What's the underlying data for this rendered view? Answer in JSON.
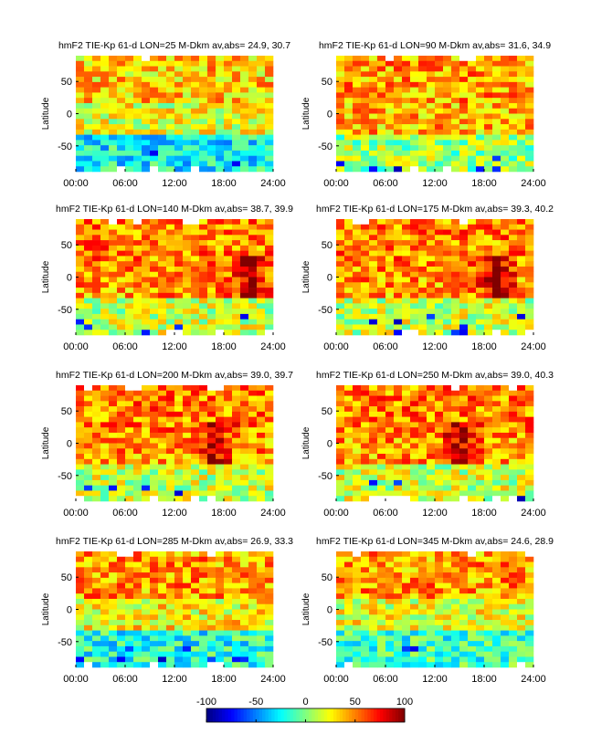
{
  "figure": {
    "ylabel": "Latitude",
    "colorbar": {
      "min": -100,
      "max": 100,
      "ticks": [
        "-100",
        "-50",
        "0",
        "50",
        "100"
      ],
      "colormap": "jet"
    }
  },
  "chart_data": [
    {
      "type": "heatmap",
      "title": "hmF2 TIE-Kp 61-d  LON=25 M-Dkm av,abs= 24.9, 30.7",
      "x_ticks": [
        "00:00",
        "06:00",
        "12:00",
        "18:00",
        "24:00"
      ],
      "y_ticks": [
        "50",
        "0",
        "-50"
      ],
      "ylabel": "Latitude",
      "xlim": [
        0,
        24
      ],
      "ylim": [
        -90,
        90
      ],
      "hot_spots": [],
      "description_values": {
        "north": 35,
        "equator": 20,
        "south": -25
      }
    },
    {
      "type": "heatmap",
      "title": "hmF2 TIE-Kp 61-d  LON=90 M-Dkm av,abs= 31.6, 34.9",
      "x_ticks": [
        "00:00",
        "06:00",
        "12:00",
        "18:00",
        "24:00"
      ],
      "y_ticks": [
        "50",
        "0",
        "-50"
      ],
      "ylabel": "Latitude",
      "xlim": [
        0,
        24
      ],
      "ylim": [
        -90,
        90
      ],
      "hot_spots": [],
      "description_values": {
        "north": 45,
        "equator": 40,
        "south": 5
      }
    },
    {
      "type": "heatmap",
      "title": "hmF2 TIE-Kp 61-d  LON=140 M-Dkm av,abs= 38.7, 39.9",
      "x_ticks": [
        "00:00",
        "06:00",
        "12:00",
        "18:00",
        "24:00"
      ],
      "y_ticks": [
        "50",
        "0",
        "-50"
      ],
      "ylabel": "Latitude",
      "xlim": [
        0,
        24
      ],
      "ylim": [
        -90,
        90
      ],
      "hot_spots": [
        21
      ],
      "description_values": {
        "north": 50,
        "equator": 45,
        "south": 15
      }
    },
    {
      "type": "heatmap",
      "title": "hmF2 TIE-Kp 61-d  LON=175 M-Dkm av,abs= 39.3, 40.2",
      "x_ticks": [
        "00:00",
        "06:00",
        "12:00",
        "18:00",
        "24:00"
      ],
      "y_ticks": [
        "50",
        "0",
        "-50"
      ],
      "ylabel": "Latitude",
      "xlim": [
        0,
        24
      ],
      "ylim": [
        -90,
        90
      ],
      "hot_spots": [
        19.5
      ],
      "description_values": {
        "north": 50,
        "equator": 45,
        "south": 15
      }
    },
    {
      "type": "heatmap",
      "title": "hmF2 TIE-Kp 61-d  LON=200 M-Dkm av,abs= 39.0, 39.7",
      "x_ticks": [
        "00:00",
        "06:00",
        "12:00",
        "18:00",
        "24:00"
      ],
      "y_ticks": [
        "50",
        "0",
        "-50"
      ],
      "ylabel": "Latitude",
      "xlim": [
        0,
        24
      ],
      "ylim": [
        -90,
        90
      ],
      "hot_spots": [
        17
      ],
      "description_values": {
        "north": 50,
        "equator": 45,
        "south": 15
      }
    },
    {
      "type": "heatmap",
      "title": "hmF2 TIE-Kp 61-d  LON=250 M-Dkm av,abs= 39.0, 40.3",
      "x_ticks": [
        "00:00",
        "06:00",
        "12:00",
        "18:00",
        "24:00"
      ],
      "y_ticks": [
        "50",
        "0",
        "-50"
      ],
      "ylabel": "Latitude",
      "xlim": [
        0,
        24
      ],
      "ylim": [
        -90,
        90
      ],
      "hot_spots": [
        15
      ],
      "description_values": {
        "north": 50,
        "equator": 45,
        "south": 15
      }
    },
    {
      "type": "heatmap",
      "title": "hmF2 TIE-Kp 61-d  LON=285 M-Dkm av,abs= 26.9, 33.3",
      "x_ticks": [
        "00:00",
        "06:00",
        "12:00",
        "18:00",
        "24:00"
      ],
      "y_ticks": [
        "50",
        "0",
        "-50"
      ],
      "ylabel": "Latitude",
      "xlim": [
        0,
        24
      ],
      "ylim": [
        -90,
        90
      ],
      "hot_spots": [],
      "description_values": {
        "north": 45,
        "equator": 25,
        "south": -20
      }
    },
    {
      "type": "heatmap",
      "title": "hmF2 TIE-Kp 61-d  LON=345 M-Dkm av,abs= 24.6, 28.9",
      "x_ticks": [
        "00:00",
        "06:00",
        "12:00",
        "18:00",
        "24:00"
      ],
      "y_ticks": [
        "50",
        "0",
        "-50"
      ],
      "ylabel": "Latitude",
      "xlim": [
        0,
        24
      ],
      "ylim": [
        -90,
        90
      ],
      "hot_spots": [],
      "description_values": {
        "north": 45,
        "equator": 20,
        "south": -15
      }
    }
  ]
}
